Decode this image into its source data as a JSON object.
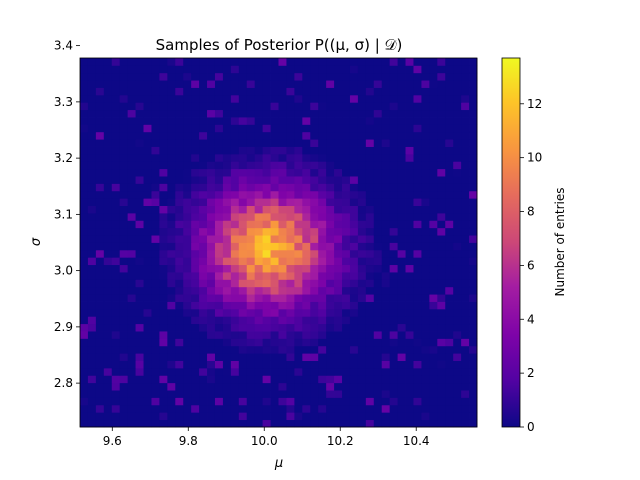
{
  "chart_data": {
    "type": "heatmap",
    "title": "Samples of Posterior P((μ, σ) | 𝒟)",
    "xlabel": "μ",
    "ylabel": "σ",
    "colorbar_label": "Number of entries",
    "colormap": "plasma",
    "xlim": [
      9.515,
      10.56
    ],
    "ylim": [
      2.722,
      3.378
    ],
    "x_ticks": [
      9.6,
      9.8,
      10.0,
      10.2,
      10.4
    ],
    "x_tick_labels": [
      "9.6",
      "9.8",
      "10.0",
      "10.2",
      "10.4"
    ],
    "y_ticks": [
      2.8,
      2.9,
      3.0,
      3.1,
      3.2,
      3.3,
      3.4
    ],
    "y_tick_labels": [
      "2.8",
      "2.9",
      "3.0",
      "3.1",
      "3.2",
      "3.3",
      "3.4"
    ],
    "color_range": [
      0,
      13.7
    ],
    "colorbar_ticks": [
      0,
      2,
      4,
      6,
      8,
      10,
      12
    ],
    "colorbar_tick_labels": [
      "0",
      "2",
      "4",
      "6",
      "8",
      "10",
      "12"
    ],
    "bins": [
      50,
      50
    ],
    "distribution": {
      "mu_center": 10.01,
      "sigma_center": 3.04,
      "mu_spread": 0.11,
      "sigma_spread": 0.07,
      "peak_count": 13.7
    }
  }
}
